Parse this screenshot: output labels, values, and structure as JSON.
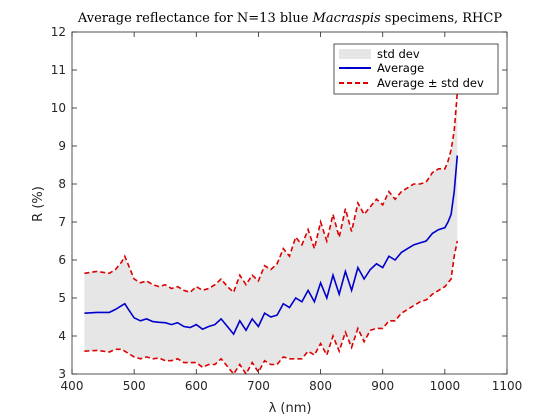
{
  "chart_data": {
    "type": "line",
    "title_parts": [
      "Average reflectance for N=13 blue ",
      "Macraspis",
      " specimens, RHCP"
    ],
    "xlabel": "λ (nm)",
    "ylabel": "R (%)",
    "xlim": [
      400,
      1100
    ],
    "ylim": [
      3,
      12
    ],
    "xticks": [
      400,
      500,
      600,
      700,
      800,
      900,
      1000,
      1100
    ],
    "yticks": [
      3,
      4,
      5,
      6,
      7,
      8,
      9,
      10,
      11,
      12
    ],
    "grid": false,
    "legend_position": "top-right",
    "colors": {
      "std_fill": "#e6e6e6",
      "average": "#0000cc",
      "band": "#dd0000"
    },
    "series": [
      {
        "name": "std dev",
        "style": "fill"
      },
      {
        "name": "Average",
        "style": "solid",
        "x": [
          420,
          440,
          460,
          470,
          480,
          485,
          490,
          500,
          510,
          520,
          530,
          540,
          550,
          560,
          570,
          580,
          590,
          600,
          610,
          620,
          630,
          640,
          650,
          660,
          670,
          680,
          690,
          700,
          710,
          720,
          730,
          740,
          750,
          760,
          770,
          780,
          790,
          800,
          810,
          820,
          830,
          840,
          850,
          860,
          870,
          880,
          890,
          900,
          910,
          920,
          930,
          940,
          950,
          960,
          970,
          980,
          990,
          1000,
          1005,
          1010,
          1015,
          1020
        ],
        "y": [
          4.6,
          4.62,
          4.62,
          4.7,
          4.8,
          4.85,
          4.72,
          4.48,
          4.4,
          4.45,
          4.38,
          4.36,
          4.35,
          4.3,
          4.35,
          4.25,
          4.22,
          4.3,
          4.18,
          4.25,
          4.3,
          4.45,
          4.25,
          4.05,
          4.4,
          4.15,
          4.45,
          4.25,
          4.6,
          4.5,
          4.55,
          4.85,
          4.75,
          5.0,
          4.9,
          5.2,
          4.9,
          5.4,
          5.0,
          5.6,
          5.1,
          5.7,
          5.2,
          5.8,
          5.5,
          5.75,
          5.9,
          5.8,
          6.1,
          6.0,
          6.2,
          6.3,
          6.4,
          6.45,
          6.5,
          6.7,
          6.8,
          6.85,
          7.0,
          7.2,
          7.8,
          8.75
        ]
      },
      {
        "name": "Average ± std dev",
        "style": "dashed",
        "x": [
          420,
          440,
          460,
          470,
          480,
          485,
          490,
          500,
          510,
          520,
          530,
          540,
          550,
          560,
          570,
          580,
          590,
          600,
          610,
          620,
          630,
          640,
          650,
          660,
          670,
          680,
          690,
          700,
          710,
          720,
          730,
          740,
          750,
          760,
          770,
          780,
          790,
          800,
          810,
          820,
          830,
          840,
          850,
          860,
          870,
          880,
          890,
          900,
          910,
          920,
          930,
          940,
          950,
          960,
          970,
          980,
          990,
          1000,
          1005,
          1010,
          1015,
          1020
        ],
        "upper": [
          5.65,
          5.7,
          5.65,
          5.75,
          5.95,
          6.1,
          5.9,
          5.5,
          5.4,
          5.45,
          5.35,
          5.3,
          5.35,
          5.25,
          5.3,
          5.2,
          5.15,
          5.3,
          5.2,
          5.25,
          5.35,
          5.5,
          5.3,
          5.15,
          5.6,
          5.35,
          5.6,
          5.45,
          5.85,
          5.75,
          5.9,
          6.3,
          6.1,
          6.6,
          6.4,
          6.8,
          6.3,
          7.0,
          6.5,
          7.2,
          6.6,
          7.35,
          6.75,
          7.5,
          7.2,
          7.4,
          7.6,
          7.45,
          7.8,
          7.6,
          7.8,
          7.9,
          8.0,
          8.0,
          8.05,
          8.3,
          8.4,
          8.4,
          8.6,
          8.9,
          9.4,
          10.4
        ],
        "lower": [
          3.6,
          3.62,
          3.58,
          3.65,
          3.65,
          3.6,
          3.55,
          3.45,
          3.4,
          3.45,
          3.4,
          3.42,
          3.35,
          3.35,
          3.4,
          3.3,
          3.3,
          3.3,
          3.18,
          3.25,
          3.25,
          3.4,
          3.2,
          3.0,
          3.25,
          3.0,
          3.3,
          3.05,
          3.35,
          3.25,
          3.25,
          3.45,
          3.4,
          3.4,
          3.4,
          3.6,
          3.5,
          3.8,
          3.5,
          4.0,
          3.6,
          4.1,
          3.7,
          4.2,
          3.85,
          4.15,
          4.2,
          4.2,
          4.4,
          4.4,
          4.6,
          4.7,
          4.8,
          4.9,
          4.95,
          5.1,
          5.2,
          5.3,
          5.4,
          5.5,
          6.1,
          6.5
        ]
      }
    ]
  }
}
